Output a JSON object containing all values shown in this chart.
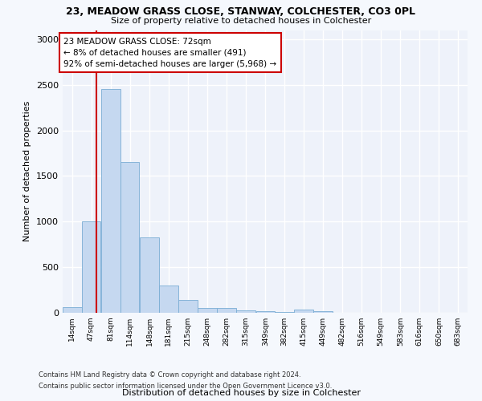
{
  "title": "23, MEADOW GRASS CLOSE, STANWAY, COLCHESTER, CO3 0PL",
  "subtitle": "Size of property relative to detached houses in Colchester",
  "xlabel": "Distribution of detached houses by size in Colchester",
  "ylabel": "Number of detached properties",
  "bar_color": "#c5d8f0",
  "bar_edge_color": "#7aadd4",
  "bg_color": "#eef2fa",
  "grid_color": "#ffffff",
  "annotation_box_color": "#cc0000",
  "vline_color": "#cc0000",
  "property_size": 72,
  "annotation_text": "23 MEADOW GRASS CLOSE: 72sqm\n← 8% of detached houses are smaller (491)\n92% of semi-detached houses are larger (5,968) →",
  "bins": [
    14,
    47,
    81,
    114,
    148,
    181,
    215,
    248,
    282,
    315,
    349,
    382,
    415,
    449,
    482,
    516,
    549,
    583,
    616,
    650,
    683
  ],
  "values": [
    60,
    1000,
    2450,
    1650,
    830,
    300,
    140,
    55,
    55,
    30,
    20,
    10,
    35,
    15,
    0,
    0,
    0,
    0,
    0,
    0
  ],
  "ylim": [
    0,
    3100
  ],
  "yticks": [
    0,
    500,
    1000,
    1500,
    2000,
    2500,
    3000
  ],
  "footnote1": "Contains HM Land Registry data © Crown copyright and database right 2024.",
  "footnote2": "Contains public sector information licensed under the Open Government Licence v3.0.",
  "fig_width": 6.0,
  "fig_height": 5.0,
  "dpi": 100
}
